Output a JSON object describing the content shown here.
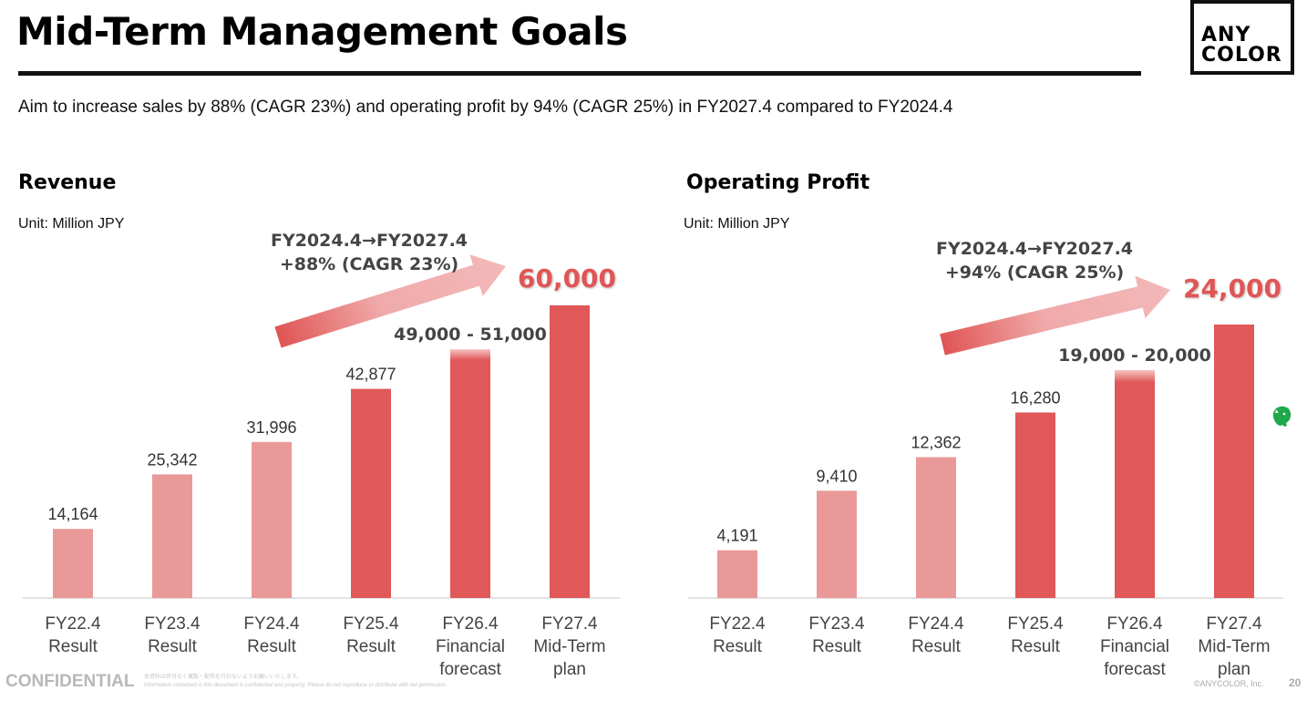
{
  "header": {
    "title": "Mid-Term Management Goals",
    "logo_line1": "ANY",
    "logo_line2": "COLOR",
    "subtitle": "Aim to increase sales by 88% (CAGR 23%) and operating profit by 94% (CAGR 25%) in FY2027.4 compared to FY2024.4"
  },
  "colors": {
    "result_bar": "#ea9999",
    "forecast_bar": "#e05858",
    "target_text": "#e05555",
    "annotation_text": "#444444"
  },
  "chart_data": [
    {
      "type": "bar",
      "title": "Revenue",
      "unit": "Unit: Million JPY",
      "xlabel": "",
      "ylabel": "",
      "categories": [
        [
          "FY22.4",
          "Result"
        ],
        [
          "FY23.4",
          "Result"
        ],
        [
          "FY24.4",
          "Result"
        ],
        [
          "FY25.4",
          "Result"
        ],
        [
          "FY26.4",
          "Financial",
          "forecast"
        ],
        [
          "FY27.4",
          "Mid-Term",
          "plan"
        ]
      ],
      "values": [
        14164,
        25342,
        31996,
        42877,
        51000,
        60000
      ],
      "value_labels": [
        "14,164",
        "25,342",
        "31,996",
        "42,877",
        "49,000 - 51,000",
        "60,000"
      ],
      "bar_kinds": [
        "result",
        "result",
        "result",
        "highlight",
        "range",
        "target"
      ],
      "range": [
        49000,
        51000
      ],
      "growth_annotation": [
        "FY2024.4→FY2027.4",
        "+88% (CAGR 23%)"
      ],
      "ylim": [
        0,
        60000
      ],
      "grid": false
    },
    {
      "type": "bar",
      "title": "Operating Profit",
      "unit": "Unit: Million JPY",
      "xlabel": "",
      "ylabel": "",
      "categories": [
        [
          "FY22.4",
          "Result"
        ],
        [
          "FY23.4",
          "Result"
        ],
        [
          "FY24.4",
          "Result"
        ],
        [
          "FY25.4",
          "Result"
        ],
        [
          "FY26.4",
          "Financial",
          "forecast"
        ],
        [
          "FY27.4",
          "Mid-Term",
          "plan"
        ]
      ],
      "values": [
        4191,
        9410,
        12362,
        16280,
        20000,
        24000
      ],
      "value_labels": [
        "4,191",
        "9,410",
        "12,362",
        "16,280",
        "19,000 - 20,000",
        "24,000"
      ],
      "bar_kinds": [
        "result",
        "result",
        "result",
        "highlight",
        "range",
        "target"
      ],
      "range": [
        19000,
        20000
      ],
      "growth_annotation": [
        "FY2024.4→FY2027.4",
        "+94% (CAGR 25%)"
      ],
      "ylim": [
        0,
        24000
      ],
      "grid": false
    }
  ],
  "footer": {
    "confidential": "CONFIDENTIAL",
    "note_ja": "本資料は許可なく複製・配布を行わないようお願いいたします。",
    "note_en": "Information contained in this document is confidential and property. Please do not reproduce or distribute with out permission.",
    "copyright": "©ANYCOLOR, Inc.",
    "page_number": "20"
  },
  "icons": {
    "floating": "evernote-icon"
  }
}
